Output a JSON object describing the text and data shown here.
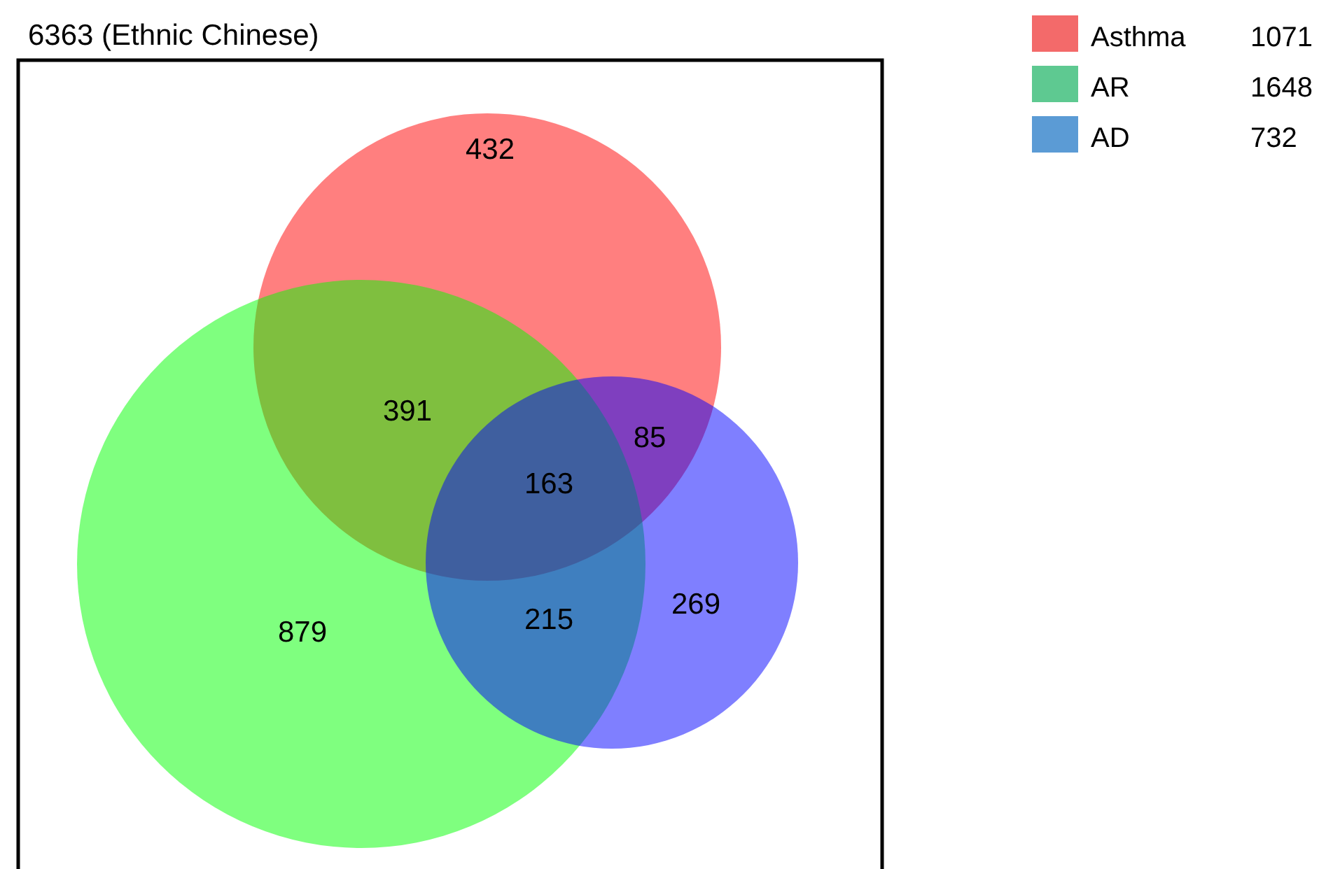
{
  "chart_data": {
    "type": "other",
    "title": "6363 (Ethnic Chinese)",
    "categories": [
      "Asthma",
      "AR",
      "AD"
    ],
    "values": [
      1071,
      1648,
      732
    ],
    "colors": [
      "#f36a6a",
      "#5ec991",
      "#5b9bd5"
    ],
    "data_labels": true,
    "annotations": [
      "432",
      "391",
      "85",
      "163",
      "879",
      "215",
      "269"
    ]
  }
}
